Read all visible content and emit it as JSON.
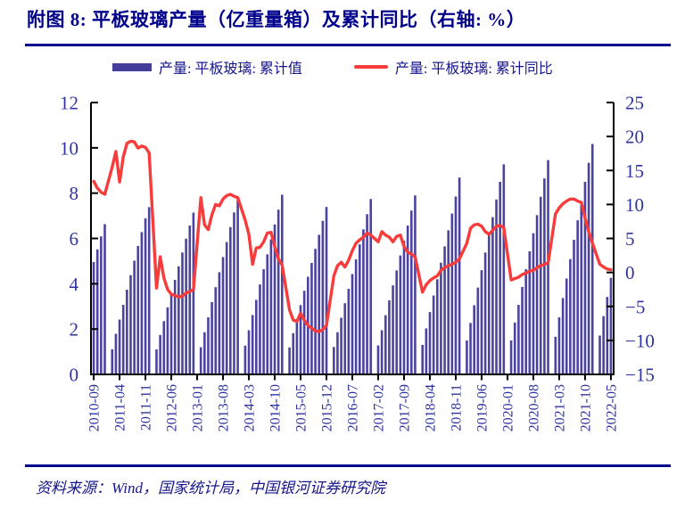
{
  "title": "附图 8: 平板玻璃产量（亿重量箱）及累计同比（右轴: %）",
  "source": "资料来源：Wind，国家统计局，中国银河证券研究院",
  "legend": [
    {
      "label": "产量: 平板玻璃: 累计值",
      "color": "#453D9C",
      "type": "bar"
    },
    {
      "label": "产量: 平板玻璃: 累计同比",
      "color": "#F83B3B",
      "type": "line"
    }
  ],
  "colors": {
    "title": "#00008B",
    "rule": "#00008B",
    "axis_text": "#2E34A0",
    "axis_line": "#000000",
    "bar": "#4B43A0",
    "line": "#F83B3B"
  },
  "chart_data": {
    "type": "bar",
    "subtype": "dual-axis bar + line combo, monthly data 2010-09 to 2022-05",
    "series": [
      {
        "name": "产量: 平板玻璃: 累计值",
        "type": "bar",
        "axis": "left",
        "color": "#4B43A0"
      },
      {
        "name": "产量: 平板玻璃: 累计同比",
        "type": "line",
        "axis": "right",
        "color": "#F83B3B"
      }
    ],
    "left_axis": {
      "min": 0,
      "max": 12,
      "ticks": [
        0,
        2,
        4,
        6,
        8,
        10,
        12
      ]
    },
    "right_axis": {
      "min": -15,
      "max": 25,
      "ticks": [
        -15,
        -10,
        -5,
        0,
        5,
        10,
        15,
        20,
        25
      ]
    },
    "x_tick_labels": [
      "2010-09",
      "2011-04",
      "2011-11",
      "2012-06",
      "2013-01",
      "2013-08",
      "2014-03",
      "2014-10",
      "2015-05",
      "2015-12",
      "2016-07",
      "2017-02",
      "2017-09",
      "2018-04",
      "2018-11",
      "2019-06",
      "2020-01",
      "2020-08",
      "2021-03",
      "2021-10",
      "2022-05"
    ],
    "x_tick_step_months": 7,
    "rows": [
      [
        "2010-09",
        4.96,
        13.4
      ],
      [
        "2010-10",
        5.52,
        12.4
      ],
      [
        "2010-11",
        6.09,
        11.8
      ],
      [
        "2010-12",
        6.63,
        11.5
      ],
      [
        "2011-01",
        null,
        null
      ],
      [
        "2011-02",
        1.11,
        15.5
      ],
      [
        "2011-03",
        1.79,
        17.8
      ],
      [
        "2011-04",
        2.42,
        13.3
      ],
      [
        "2011-05",
        3.07,
        17.0
      ],
      [
        "2011-06",
        3.74,
        19.0
      ],
      [
        "2011-07",
        4.38,
        19.3
      ],
      [
        "2011-08",
        5.02,
        19.2
      ],
      [
        "2011-09",
        5.67,
        18.3
      ],
      [
        "2011-10",
        6.28,
        18.6
      ],
      [
        "2011-11",
        6.89,
        18.4
      ],
      [
        "2011-12",
        7.38,
        17.6
      ],
      [
        "2012-01",
        null,
        null
      ],
      [
        "2012-02",
        1.1,
        -2.3
      ],
      [
        "2012-03",
        1.74,
        2.3
      ],
      [
        "2012-04",
        2.35,
        -0.8
      ],
      [
        "2012-05",
        2.96,
        -2.5
      ],
      [
        "2012-06",
        3.56,
        -3.2
      ],
      [
        "2012-07",
        4.17,
        -3.4
      ],
      [
        "2012-08",
        4.77,
        -3.6
      ],
      [
        "2012-09",
        5.38,
        -3.5
      ],
      [
        "2012-10",
        5.99,
        -3.0
      ],
      [
        "2012-11",
        6.57,
        -2.8
      ],
      [
        "2012-12",
        7.14,
        -2.5
      ],
      [
        "2013-01",
        null,
        null
      ],
      [
        "2013-02",
        1.2,
        11.0
      ],
      [
        "2013-03",
        1.86,
        7.0
      ],
      [
        "2013-04",
        2.52,
        6.3
      ],
      [
        "2013-05",
        3.19,
        8.5
      ],
      [
        "2013-06",
        3.85,
        10.0
      ],
      [
        "2013-07",
        4.51,
        9.8
      ],
      [
        "2013-08",
        5.18,
        10.8
      ],
      [
        "2013-09",
        5.84,
        11.3
      ],
      [
        "2013-10",
        6.5,
        11.5
      ],
      [
        "2013-11",
        7.15,
        11.2
      ],
      [
        "2013-12",
        7.79,
        11.0
      ],
      [
        "2014-01",
        null,
        null
      ],
      [
        "2014-02",
        1.27,
        7.7
      ],
      [
        "2014-03",
        1.95,
        5.6
      ],
      [
        "2014-04",
        2.62,
        1.2
      ],
      [
        "2014-05",
        3.29,
        3.6
      ],
      [
        "2014-06",
        3.97,
        3.7
      ],
      [
        "2014-07",
        4.64,
        4.5
      ],
      [
        "2014-08",
        5.3,
        5.8
      ],
      [
        "2014-09",
        5.96,
        5.9
      ],
      [
        "2014-10",
        6.62,
        3.8
      ],
      [
        "2014-11",
        7.27,
        2.0
      ],
      [
        "2014-12",
        7.93,
        1.1
      ],
      [
        "2015-01",
        null,
        null
      ],
      [
        "2015-02",
        1.19,
        -5.5
      ],
      [
        "2015-03",
        1.82,
        -7.0
      ],
      [
        "2015-04",
        2.44,
        -7.2
      ],
      [
        "2015-05",
        3.06,
        -6.0
      ],
      [
        "2015-06",
        3.69,
        -7.0
      ],
      [
        "2015-07",
        4.31,
        -7.8
      ],
      [
        "2015-08",
        4.92,
        -8.2
      ],
      [
        "2015-09",
        5.54,
        -8.6
      ],
      [
        "2015-10",
        6.16,
        -8.7
      ],
      [
        "2015-11",
        6.78,
        -8.4
      ],
      [
        "2015-12",
        7.39,
        -7.8
      ],
      [
        "2016-01",
        null,
        null
      ],
      [
        "2016-02",
        1.21,
        -0.5
      ],
      [
        "2016-03",
        1.86,
        1.0
      ],
      [
        "2016-04",
        2.5,
        1.5
      ],
      [
        "2016-05",
        3.14,
        0.8
      ],
      [
        "2016-06",
        3.78,
        1.8
      ],
      [
        "2016-07",
        4.43,
        3.2
      ],
      [
        "2016-08",
        5.08,
        4.3
      ],
      [
        "2016-09",
        5.74,
        4.8
      ],
      [
        "2016-10",
        6.4,
        5.2
      ],
      [
        "2016-11",
        7.07,
        5.8
      ],
      [
        "2016-12",
        7.74,
        5.5
      ],
      [
        "2017-01",
        null,
        null
      ],
      [
        "2017-02",
        1.28,
        4.5
      ],
      [
        "2017-03",
        1.95,
        6.0
      ],
      [
        "2017-04",
        2.61,
        5.5
      ],
      [
        "2017-05",
        3.27,
        5.2
      ],
      [
        "2017-06",
        3.93,
        4.5
      ],
      [
        "2017-07",
        4.59,
        5.3
      ],
      [
        "2017-08",
        5.25,
        5.5
      ],
      [
        "2017-09",
        5.9,
        3.8
      ],
      [
        "2017-10",
        6.57,
        3.0
      ],
      [
        "2017-11",
        7.23,
        2.7
      ],
      [
        "2017-12",
        7.9,
        2.3
      ],
      [
        "2018-01",
        null,
        null
      ],
      [
        "2018-02",
        1.3,
        -2.9
      ],
      [
        "2018-03",
        2.03,
        -1.8
      ],
      [
        "2018-04",
        2.75,
        -1.2
      ],
      [
        "2018-05",
        3.48,
        -0.8
      ],
      [
        "2018-06",
        4.2,
        -0.5
      ],
      [
        "2018-07",
        4.93,
        0.3
      ],
      [
        "2018-08",
        5.65,
        0.7
      ],
      [
        "2018-09",
        6.36,
        1.0
      ],
      [
        "2018-10",
        7.1,
        1.2
      ],
      [
        "2018-11",
        7.85,
        1.5
      ],
      [
        "2018-12",
        8.69,
        2.0
      ],
      [
        "2019-01",
        null,
        null
      ],
      [
        "2019-02",
        1.5,
        4.3
      ],
      [
        "2019-03",
        2.27,
        6.5
      ],
      [
        "2019-04",
        3.05,
        7.0
      ],
      [
        "2019-05",
        3.83,
        7.1
      ],
      [
        "2019-06",
        4.6,
        6.8
      ],
      [
        "2019-07",
        5.38,
        6.0
      ],
      [
        "2019-08",
        6.16,
        5.6
      ],
      [
        "2019-09",
        6.94,
        6.2
      ],
      [
        "2019-10",
        7.72,
        6.8
      ],
      [
        "2019-11",
        8.5,
        6.9
      ],
      [
        "2019-12",
        9.27,
        6.6
      ],
      [
        "2020-01",
        null,
        null
      ],
      [
        "2020-02",
        1.5,
        -1.1
      ],
      [
        "2020-03",
        2.29,
        -0.9
      ],
      [
        "2020-04",
        3.07,
        -0.7
      ],
      [
        "2020-05",
        3.86,
        -0.3
      ],
      [
        "2020-06",
        4.64,
        -0.1
      ],
      [
        "2020-07",
        5.43,
        0.2
      ],
      [
        "2020-08",
        6.23,
        0.3
      ],
      [
        "2020-09",
        7.03,
        0.7
      ],
      [
        "2020-10",
        7.84,
        1.0
      ],
      [
        "2020-11",
        8.65,
        1.2
      ],
      [
        "2020-12",
        9.46,
        1.4
      ],
      [
        "2021-01",
        null,
        null
      ],
      [
        "2021-02",
        1.66,
        8.6
      ],
      [
        "2021-03",
        2.52,
        9.5
      ],
      [
        "2021-04",
        3.37,
        10.1
      ],
      [
        "2021-05",
        4.23,
        10.5
      ],
      [
        "2021-06",
        5.09,
        10.8
      ],
      [
        "2021-07",
        5.94,
        10.8
      ],
      [
        "2021-08",
        6.8,
        10.5
      ],
      [
        "2021-09",
        7.65,
        10.3
      ],
      [
        "2021-10",
        8.5,
        8.0
      ],
      [
        "2021-11",
        9.34,
        6.0
      ],
      [
        "2021-12",
        10.17,
        4.3
      ],
      [
        "2022-01",
        null,
        null
      ],
      [
        "2022-02",
        1.71,
        1.2
      ],
      [
        "2022-03",
        2.57,
        0.8
      ],
      [
        "2022-04",
        3.42,
        0.5
      ],
      [
        "2022-05",
        4.26,
        0.4
      ]
    ]
  }
}
